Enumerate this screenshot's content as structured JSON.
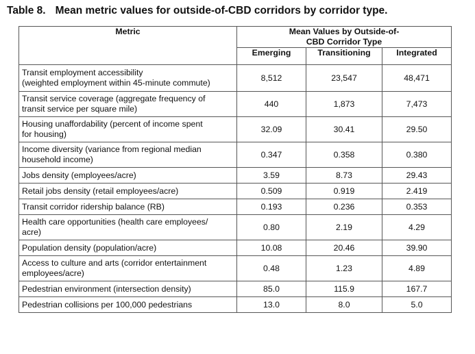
{
  "caption": {
    "label": "Table 8.",
    "title": "Mean metric values for outside-of-CBD corridors by corridor type."
  },
  "table": {
    "metric_header": "Metric",
    "group_header_line1": "Mean Values by Outside-of-",
    "group_header_line2": "CBD Corridor Type",
    "columns": [
      "Emerging",
      "Transitioning",
      "Integrated"
    ],
    "rows": [
      {
        "lines": [
          "Transit employment accessibility",
          "(weighted employment within 45-minute commute)"
        ],
        "values": [
          "8,512",
          "23,547",
          "48,471"
        ]
      },
      {
        "lines": [
          "Transit service coverage (aggregate frequency of",
          "transit service per square mile)"
        ],
        "values": [
          "440",
          "1,873",
          "7,473"
        ]
      },
      {
        "lines": [
          "Housing unaffordability (percent of income spent",
          "for housing)"
        ],
        "values": [
          "32.09",
          "30.41",
          "29.50"
        ]
      },
      {
        "lines": [
          "Income diversity (variance from regional median",
          "household income)"
        ],
        "values": [
          "0.347",
          "0.358",
          "0.380"
        ]
      },
      {
        "lines": [
          "Jobs density (employees/acre)"
        ],
        "values": [
          "3.59",
          "8.73",
          "29.43"
        ]
      },
      {
        "lines": [
          "Retail jobs density (retail employees/acre)"
        ],
        "values": [
          "0.509",
          "0.919",
          "2.419"
        ]
      },
      {
        "lines": [
          "Transit corridor ridership balance (RB)"
        ],
        "values": [
          "0.193",
          "0.236",
          "0.353"
        ]
      },
      {
        "lines": [
          "Health care opportunities (health care employees/",
          "acre)"
        ],
        "values": [
          "0.80",
          "2.19",
          "4.29"
        ]
      },
      {
        "lines": [
          "Population density (population/acre)"
        ],
        "values": [
          "10.08",
          "20.46",
          "39.90"
        ]
      },
      {
        "lines": [
          "Access to culture and arts (corridor entertainment",
          "employees/acre)"
        ],
        "values": [
          "0.48",
          "1.23",
          "4.89"
        ]
      },
      {
        "lines": [
          "Pedestrian environment (intersection density)"
        ],
        "values": [
          "85.0",
          "115.9",
          "167.7"
        ]
      },
      {
        "lines": [
          "Pedestrian collisions per 100,000 pedestrians"
        ],
        "values": [
          "13.0",
          "8.0",
          "5.0"
        ]
      }
    ]
  }
}
